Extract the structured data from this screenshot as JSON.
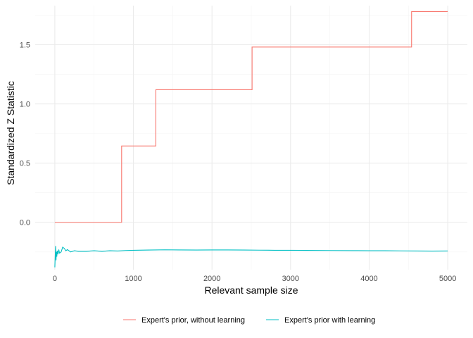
{
  "chart_data": {
    "type": "line",
    "xlabel": "Relevant sample size",
    "ylabel": "Standardized Z Statistic",
    "xlim": [
      -250,
      5250
    ],
    "ylim": [
      -0.4,
      1.83
    ],
    "x_ticks": [
      0,
      1000,
      2000,
      3000,
      4000,
      5000
    ],
    "y_ticks": [
      0.0,
      0.5,
      1.0,
      1.5
    ],
    "x_tick_labels": [
      "0",
      "1000",
      "2000",
      "3000",
      "4000",
      "5000"
    ],
    "y_tick_labels": [
      "0.0",
      "0.5",
      "1.0",
      "1.5"
    ],
    "grid": true,
    "legend_position": "bottom",
    "series": [
      {
        "name": "Expert's prior, without learning",
        "color": "#F8766D",
        "step": true,
        "x": [
          0,
          850,
          850,
          1285,
          1285,
          2510,
          2510,
          4540,
          4540,
          5000
        ],
        "y": [
          0.0,
          0.0,
          0.645,
          0.645,
          1.12,
          1.12,
          1.48,
          1.48,
          1.78,
          1.78
        ]
      },
      {
        "name": "Expert's prior with learning",
        "color": "#00BFC4",
        "step": false,
        "x": [
          0,
          5,
          10,
          15,
          20,
          25,
          30,
          40,
          50,
          60,
          80,
          100,
          120,
          140,
          160,
          180,
          200,
          250,
          300,
          400,
          500,
          600,
          700,
          800,
          900,
          1000,
          1200,
          1400,
          1600,
          1800,
          2000,
          2200,
          2400,
          2600,
          2800,
          3000,
          3200,
          3500,
          3800,
          4000,
          4200,
          4400,
          4600,
          4800,
          5000
        ],
        "y": [
          -0.38,
          -0.28,
          -0.2,
          -0.32,
          -0.25,
          -0.29,
          -0.24,
          -0.27,
          -0.23,
          -0.26,
          -0.25,
          -0.21,
          -0.22,
          -0.24,
          -0.23,
          -0.24,
          -0.25,
          -0.24,
          -0.245,
          -0.245,
          -0.24,
          -0.245,
          -0.24,
          -0.242,
          -0.238,
          -0.236,
          -0.234,
          -0.232,
          -0.233,
          -0.234,
          -0.233,
          -0.233,
          -0.234,
          -0.235,
          -0.236,
          -0.236,
          -0.237,
          -0.238,
          -0.239,
          -0.24,
          -0.24,
          -0.241,
          -0.242,
          -0.243,
          -0.242
        ]
      }
    ]
  }
}
